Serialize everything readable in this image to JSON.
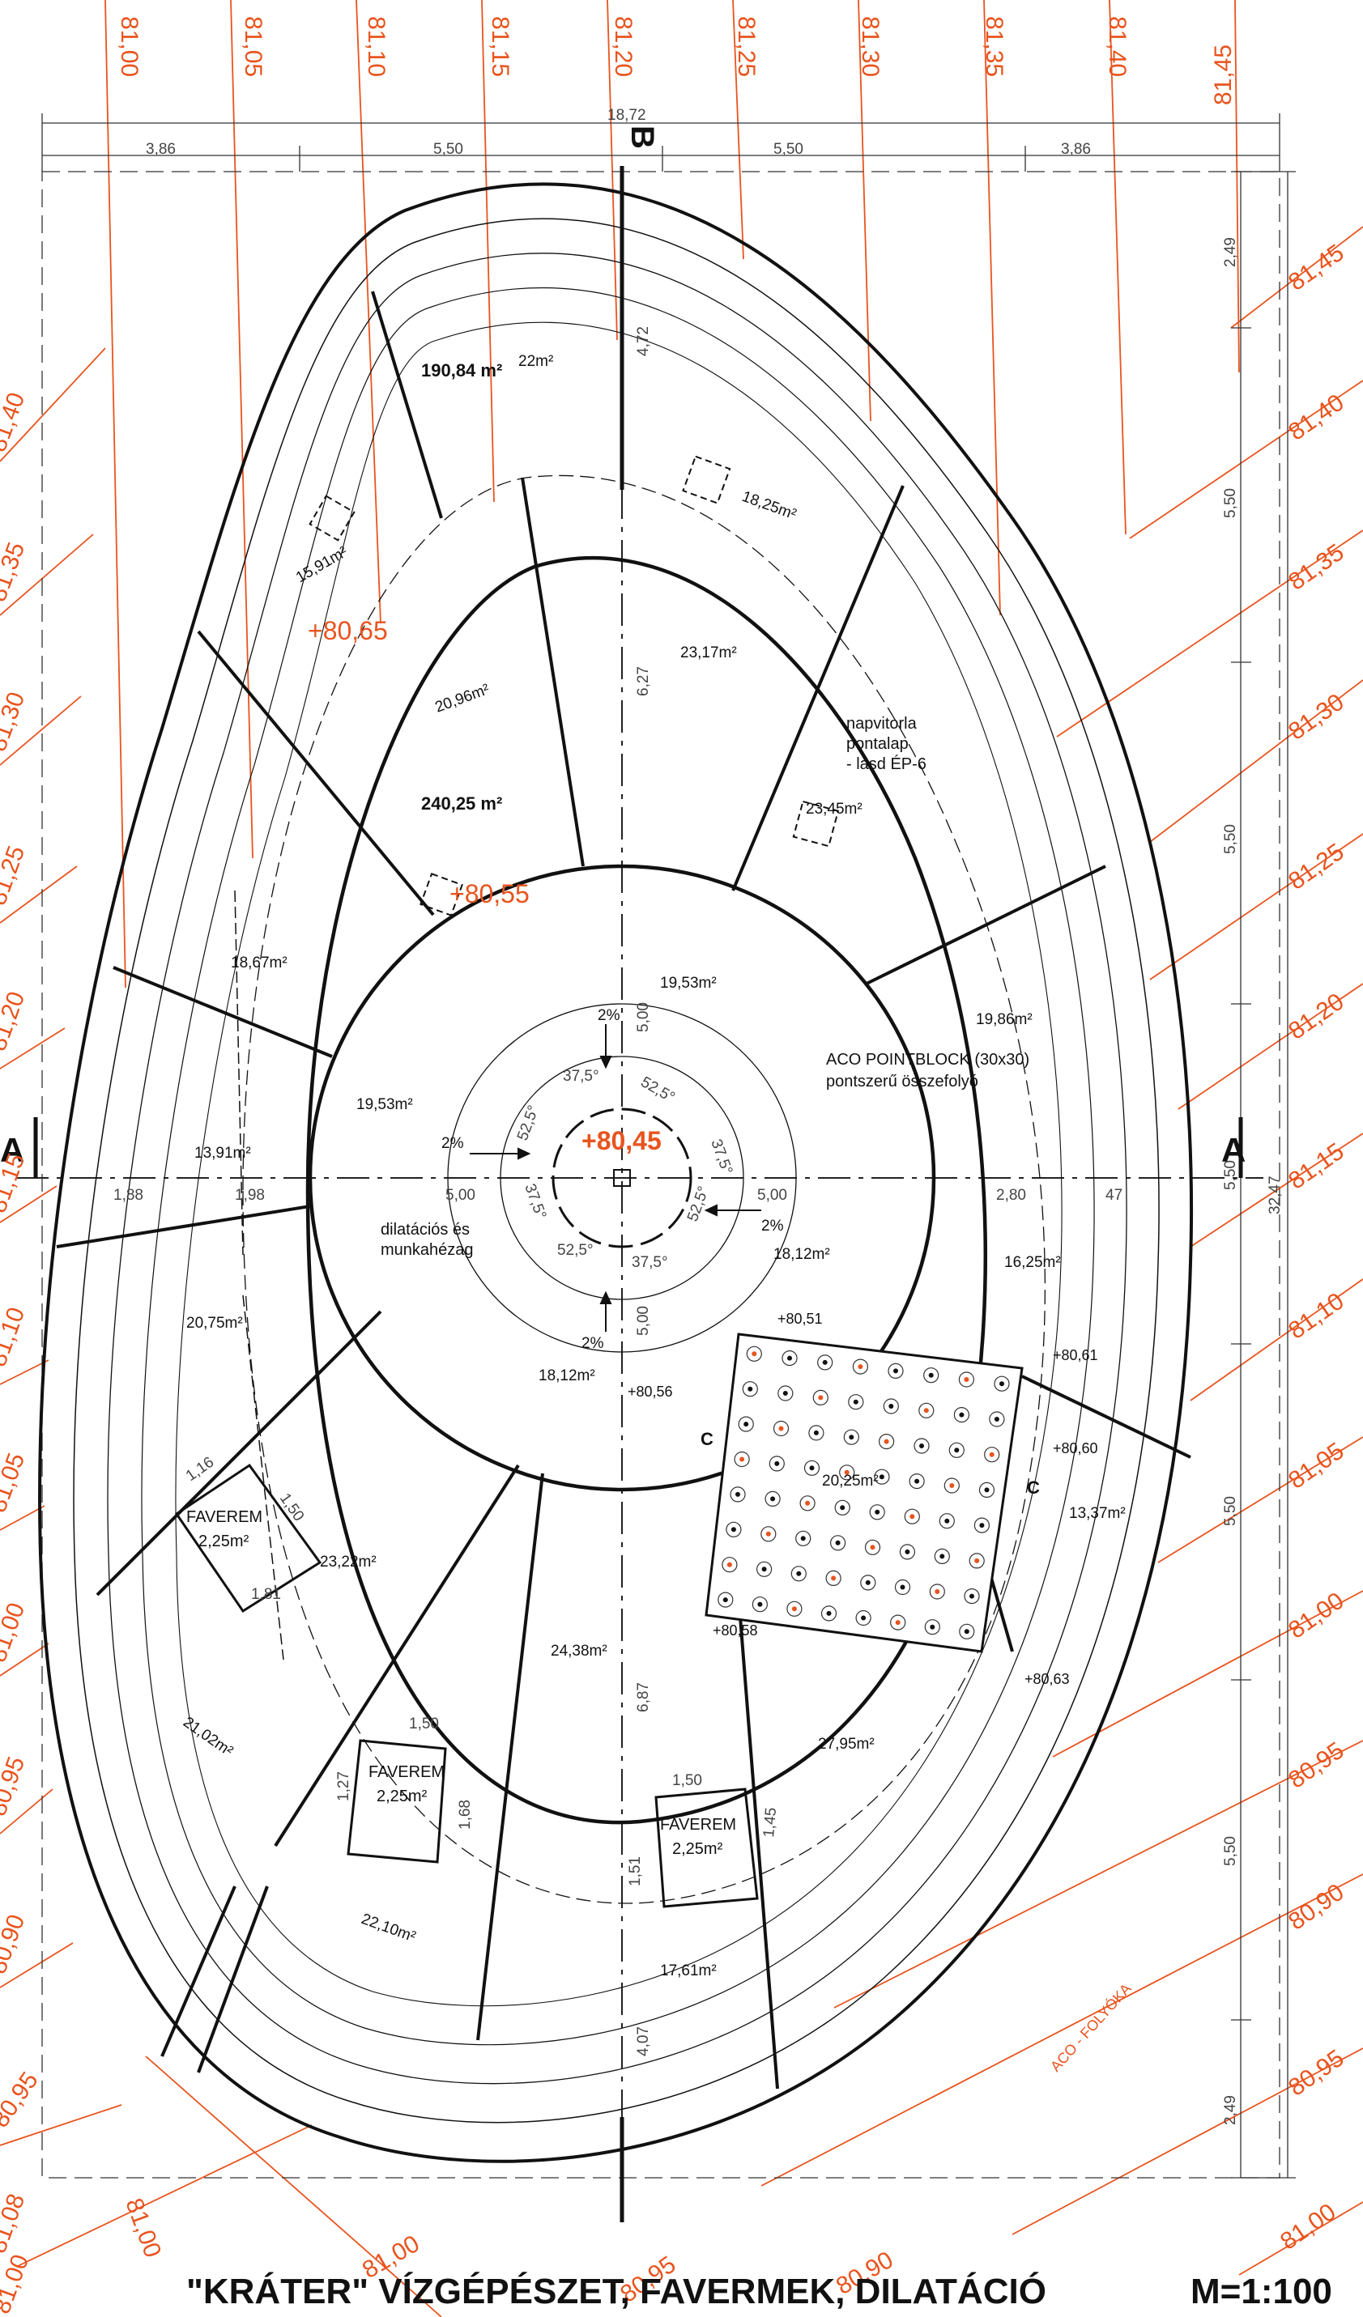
{
  "title": "\"KRÁTER\" VÍZGÉPÉSZET, FAVERMEK, DILATÁCIÓ",
  "scale": "M=1:100",
  "colors": {
    "contour": "#e8541e",
    "ink": "#111111",
    "grid": "#555555"
  },
  "section_marks": {
    "a_left": "A",
    "a_right": "A",
    "b_top": "B",
    "c_left": "C",
    "c_right": "C"
  },
  "dimensions": {
    "top_total": "18,72",
    "top": [
      "3,86",
      "5,50",
      "5,50",
      "3,86"
    ],
    "right_total": "32,47",
    "right": [
      "2,49",
      "5,50",
      "5,50",
      "5,50",
      "5,50",
      "5,50",
      "2,49"
    ],
    "axis_h": [
      "1,88",
      "1,98",
      "5,00",
      "5,00",
      "2,80",
      "47"
    ],
    "axis_v": [
      "4,72",
      "6,27",
      "5,00",
      "5,00",
      "6,87",
      "4,07"
    ],
    "faverem": [
      "1,16",
      "1,50",
      "1,81",
      "1,50",
      "1,27",
      "1,68",
      "1,50",
      "1,45",
      "1,51"
    ]
  },
  "contour_top": [
    "81,00",
    "81,05",
    "81,10",
    "81,15",
    "81,20",
    "81,25",
    "81,30",
    "81,35",
    "81,40",
    "81,45"
  ],
  "contour_right": [
    "81,45",
    "81,40",
    "81,35",
    "81,30",
    "81,25",
    "81,20",
    "81,15",
    "81,10",
    "81,05",
    "81,00",
    "80,95",
    "80,90",
    "80,95",
    "81,00"
  ],
  "contour_left": [
    "81,40",
    "81,35",
    "81,30",
    "81,25",
    "81,20",
    "81,15",
    "81,10",
    "81,05",
    "81,00",
    "80,95",
    "80,90",
    "80,95",
    "81,08",
    "81,00"
  ],
  "contour_bottom": [
    "81,00",
    "81,00",
    "80,95",
    "80,90"
  ],
  "elevations": {
    "center": "+80,45",
    "upper": "+80,65",
    "mid": "+80,55"
  },
  "small_elevations": [
    "+80,51",
    "+80,61",
    "+80,56",
    "+80,60",
    "+80,58",
    "+80,63"
  ],
  "areas": {
    "a1": "190,84 m²",
    "a2": "22m²",
    "a3": "18,25m²",
    "a4": "15,91m²",
    "a5": "240,25 m²",
    "a6": "20,96m²",
    "a7": "23,17m²",
    "a8": "23,45m²",
    "a9": "18,67m²",
    "a10": "19,53m²",
    "a11": "19,53m²",
    "a12": "19,86m²",
    "a13": "13,91m²",
    "a14": "18,12m²",
    "a15": "16,25m²",
    "a16": "20,75m²",
    "a17": "18,12m²",
    "a18": "20,25m²",
    "a19": "13,37m²",
    "a20": "23,22m²",
    "a21": "24,38m²",
    "a22": "27,95m²",
    "a23": "21,02m²",
    "a24": "22,10m²",
    "a25": "17,61m²"
  },
  "faverem": [
    {
      "label": "FAVEREM",
      "area": "2,25m²"
    },
    {
      "label": "FAVEREM",
      "area": "2,25m²"
    },
    {
      "label": "FAVEREM",
      "area": "2,25m²"
    }
  ],
  "angles": [
    "37,5°",
    "52,5°",
    "52,5°",
    "37,5°",
    "37,5°",
    "52,5°",
    "52,5°",
    "37,5°"
  ],
  "slopes": [
    "2%",
    "2%",
    "2%",
    "2%"
  ],
  "notes": {
    "aco_point": "ACO POINTBLOCK (30x30)",
    "aco_point2": "pontszerű összefolyó",
    "sail1": "napvitorla",
    "sail2": "pontalap",
    "sail3": "- lásd ÉP-6",
    "dil1": "dilatációs és",
    "dil2": "munkahézag",
    "aco_channel": "ACO - FOLYÓKA"
  }
}
